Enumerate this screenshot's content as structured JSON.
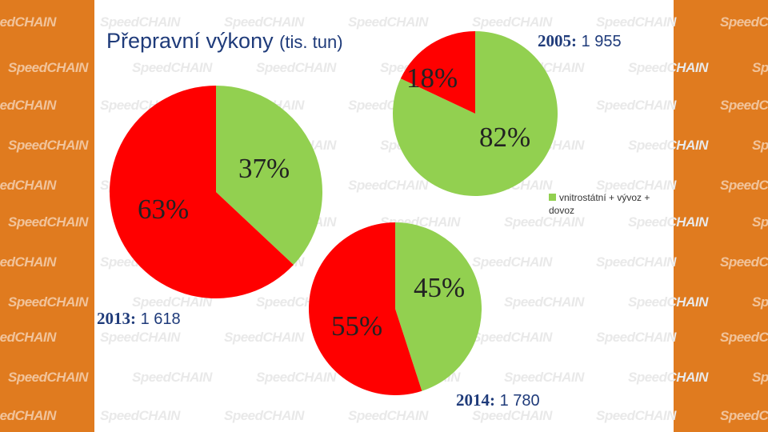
{
  "title": "Přepravní výkony",
  "title_unit": "(tis. tun)",
  "watermark_text": "SpeedCHAIN",
  "colors": {
    "green": "#92d050",
    "red": "#ff0000",
    "band": "#e07b1f",
    "title": "#1f3b7a"
  },
  "legend": {
    "label": "vnitrostátní + vývoz + dovoz",
    "color": "#92d050"
  },
  "chart_data": [
    {
      "type": "pie",
      "year": "2013",
      "total": "1 618",
      "slices": [
        {
          "label": "37%",
          "value": 37,
          "color": "#92d050"
        },
        {
          "label": "63%",
          "value": 63,
          "color": "#ff0000"
        }
      ]
    },
    {
      "type": "pie",
      "year": "2005",
      "total": "1 955",
      "slices": [
        {
          "label": "82%",
          "value": 82,
          "color": "#92d050"
        },
        {
          "label": "18%",
          "value": 18,
          "color": "#ff0000"
        }
      ]
    },
    {
      "type": "pie",
      "year": "2014",
      "total": "1 780",
      "slices": [
        {
          "label": "45%",
          "value": 45,
          "color": "#92d050"
        },
        {
          "label": "55%",
          "value": 55,
          "color": "#ff0000"
        }
      ]
    }
  ]
}
